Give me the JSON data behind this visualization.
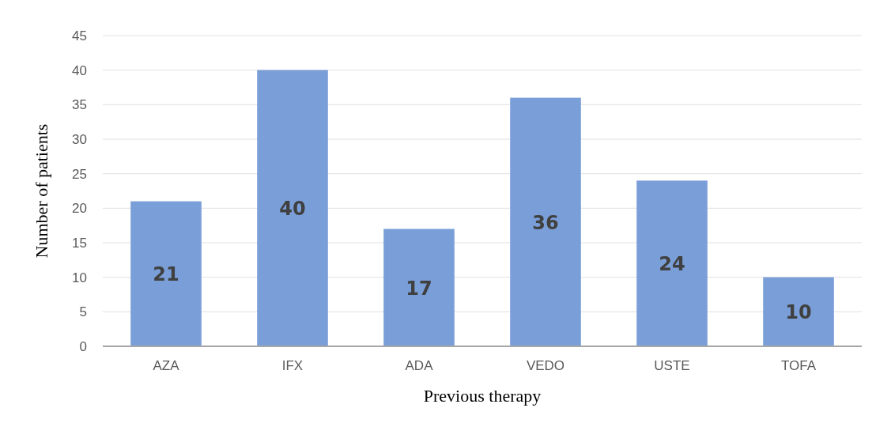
{
  "chart_data": {
    "type": "bar",
    "xlabel": "Previous therapy",
    "ylabel": "Number of patients",
    "categories": [
      "AZA",
      "IFX",
      "ADA",
      "VEDO",
      "USTE",
      "TOFA"
    ],
    "values": [
      21,
      40,
      17,
      36,
      24,
      10
    ],
    "color": "#7a9fd8",
    "ylim": [
      0,
      45
    ],
    "yticks": [
      0,
      5,
      10,
      15,
      20,
      25,
      30,
      35,
      40,
      45
    ],
    "grid": "y",
    "data_labels": true
  }
}
